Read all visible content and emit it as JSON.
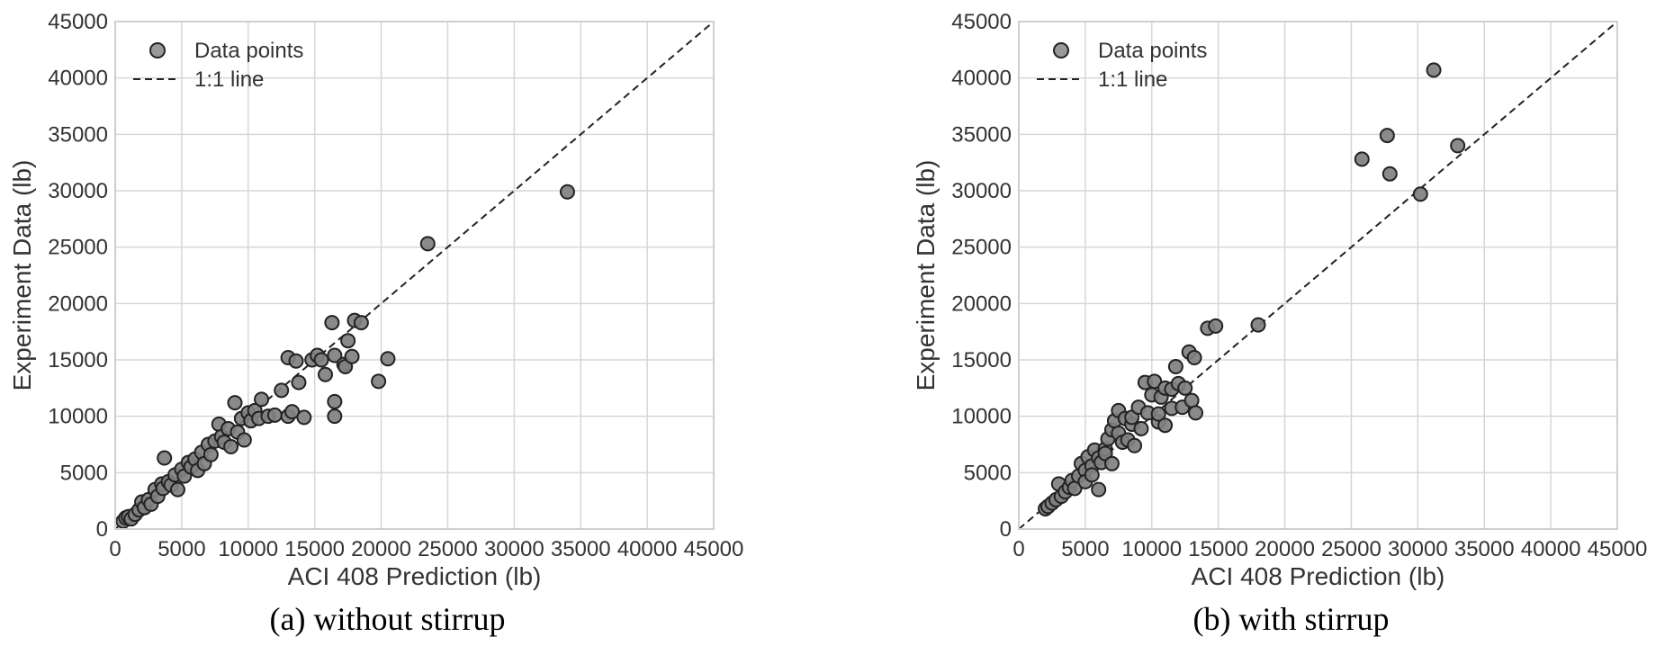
{
  "chart_data": [
    {
      "type": "scatter",
      "caption": "(a) without stirrup",
      "xlabel": "ACI 408 Prediction (lb)",
      "ylabel": "Experiment Data (lb)",
      "xlim": [
        0,
        45000
      ],
      "ylim": [
        0,
        45000
      ],
      "xticks": [
        0,
        5000,
        10000,
        15000,
        20000,
        25000,
        30000,
        35000,
        40000,
        45000
      ],
      "yticks": [
        0,
        5000,
        10000,
        15000,
        20000,
        25000,
        30000,
        35000,
        40000,
        45000
      ],
      "grid": true,
      "legend": {
        "placement": "top-left",
        "entries": [
          "Data points",
          "1:1 line"
        ]
      },
      "colors": {
        "marker_fill": "#808080",
        "marker_edge": "#222222",
        "line": "#222222",
        "grid": "#d6d6d6"
      },
      "series": [
        {
          "name": "Data points",
          "kind": "scatter",
          "points": [
            [
              600,
              700
            ],
            [
              800,
              1000
            ],
            [
              1000,
              1100
            ],
            [
              1200,
              900
            ],
            [
              1500,
              1300
            ],
            [
              1800,
              1700
            ],
            [
              2000,
              2400
            ],
            [
              2200,
              1900
            ],
            [
              2500,
              2600
            ],
            [
              2700,
              2200
            ],
            [
              3000,
              3500
            ],
            [
              3200,
              2900
            ],
            [
              3500,
              4000
            ],
            [
              3600,
              3600
            ],
            [
              3700,
              6300
            ],
            [
              4000,
              4200
            ],
            [
              4200,
              3900
            ],
            [
              4500,
              4800
            ],
            [
              4700,
              3500
            ],
            [
              5000,
              5300
            ],
            [
              5200,
              4700
            ],
            [
              5500,
              5900
            ],
            [
              5700,
              5500
            ],
            [
              6000,
              6200
            ],
            [
              6200,
              5200
            ],
            [
              6500,
              6800
            ],
            [
              6700,
              5800
            ],
            [
              7000,
              7500
            ],
            [
              7200,
              6600
            ],
            [
              7500,
              7800
            ],
            [
              7800,
              9300
            ],
            [
              8000,
              8200
            ],
            [
              8200,
              7700
            ],
            [
              8500,
              8900
            ],
            [
              8700,
              7300
            ],
            [
              9000,
              11200
            ],
            [
              9200,
              8600
            ],
            [
              9500,
              9800
            ],
            [
              9700,
              7900
            ],
            [
              10000,
              10300
            ],
            [
              10200,
              9600
            ],
            [
              10500,
              10500
            ],
            [
              10800,
              9800
            ],
            [
              11000,
              11500
            ],
            [
              11500,
              10000
            ],
            [
              12000,
              10100
            ],
            [
              12500,
              12300
            ],
            [
              13000,
              15200
            ],
            [
              13000,
              10000
            ],
            [
              13300,
              10400
            ],
            [
              13600,
              14900
            ],
            [
              13800,
              13000
            ],
            [
              14200,
              9900
            ],
            [
              14800,
              15000
            ],
            [
              15200,
              15400
            ],
            [
              15500,
              15000
            ],
            [
              15800,
              13700
            ],
            [
              16300,
              18300
            ],
            [
              16500,
              15400
            ],
            [
              16500,
              11300
            ],
            [
              16500,
              10000
            ],
            [
              17200,
              14600
            ],
            [
              17300,
              14400
            ],
            [
              17500,
              16700
            ],
            [
              17800,
              15300
            ],
            [
              18000,
              18500
            ],
            [
              18500,
              18300
            ],
            [
              19800,
              13100
            ],
            [
              20500,
              15100
            ],
            [
              23500,
              25300
            ],
            [
              34000,
              29900
            ]
          ]
        },
        {
          "name": "1:1 line",
          "kind": "line",
          "x": [
            0,
            45000
          ],
          "y": [
            0,
            45000
          ]
        }
      ]
    },
    {
      "type": "scatter",
      "caption": "(b) with stirrup",
      "xlabel": "ACI 408 Prediction (lb)",
      "ylabel": "Experiment Data (lb)",
      "xlim": [
        0,
        45000
      ],
      "ylim": [
        0,
        45000
      ],
      "xticks": [
        0,
        5000,
        10000,
        15000,
        20000,
        25000,
        30000,
        35000,
        40000,
        45000
      ],
      "yticks": [
        0,
        5000,
        10000,
        15000,
        20000,
        25000,
        30000,
        35000,
        40000,
        45000
      ],
      "grid": true,
      "legend": {
        "placement": "top-left",
        "entries": [
          "Data points",
          "1:1 line"
        ]
      },
      "colors": {
        "marker_fill": "#808080",
        "marker_edge": "#222222",
        "line": "#222222",
        "grid": "#d6d6d6"
      },
      "series": [
        {
          "name": "Data points",
          "kind": "scatter",
          "points": [
            [
              2000,
              1800
            ],
            [
              2200,
              2000
            ],
            [
              2500,
              2300
            ],
            [
              2800,
              2600
            ],
            [
              3000,
              4000
            ],
            [
              3200,
              2900
            ],
            [
              3500,
              3300
            ],
            [
              3800,
              3700
            ],
            [
              4000,
              4300
            ],
            [
              4200,
              3600
            ],
            [
              4500,
              4700
            ],
            [
              4700,
              5800
            ],
            [
              5000,
              5200
            ],
            [
              5000,
              4200
            ],
            [
              5200,
              6400
            ],
            [
              5500,
              5600
            ],
            [
              5500,
              4800
            ],
            [
              5700,
              7000
            ],
            [
              6000,
              6300
            ],
            [
              6000,
              3500
            ],
            [
              6200,
              5900
            ],
            [
              6500,
              7100
            ],
            [
              6500,
              6700
            ],
            [
              6700,
              8000
            ],
            [
              7000,
              8800
            ],
            [
              7000,
              5800
            ],
            [
              7200,
              9600
            ],
            [
              7500,
              8500
            ],
            [
              7500,
              10500
            ],
            [
              7800,
              7700
            ],
            [
              8000,
              9800
            ],
            [
              8200,
              7900
            ],
            [
              8500,
              9300
            ],
            [
              8500,
              9900
            ],
            [
              8700,
              7400
            ],
            [
              9000,
              10800
            ],
            [
              9200,
              8900
            ],
            [
              9500,
              13000
            ],
            [
              9700,
              10300
            ],
            [
              10000,
              11900
            ],
            [
              10200,
              13100
            ],
            [
              10500,
              9500
            ],
            [
              10500,
              10200
            ],
            [
              10700,
              11700
            ],
            [
              11000,
              12500
            ],
            [
              11000,
              9200
            ],
            [
              11500,
              12400
            ],
            [
              11500,
              10700
            ],
            [
              11800,
              14400
            ],
            [
              12000,
              12900
            ],
            [
              12300,
              10800
            ],
            [
              12500,
              12500
            ],
            [
              12800,
              15700
            ],
            [
              13000,
              11400
            ],
            [
              13200,
              15200
            ],
            [
              13300,
              10300
            ],
            [
              14200,
              17800
            ],
            [
              14800,
              18000
            ],
            [
              18000,
              18100
            ],
            [
              25800,
              32800
            ],
            [
              27700,
              34900
            ],
            [
              27900,
              31500
            ],
            [
              30200,
              29700
            ],
            [
              31200,
              40700
            ],
            [
              33000,
              34000
            ]
          ]
        },
        {
          "name": "1:1 line",
          "kind": "line",
          "x": [
            0,
            45000
          ],
          "y": [
            0,
            45000
          ]
        }
      ]
    }
  ]
}
